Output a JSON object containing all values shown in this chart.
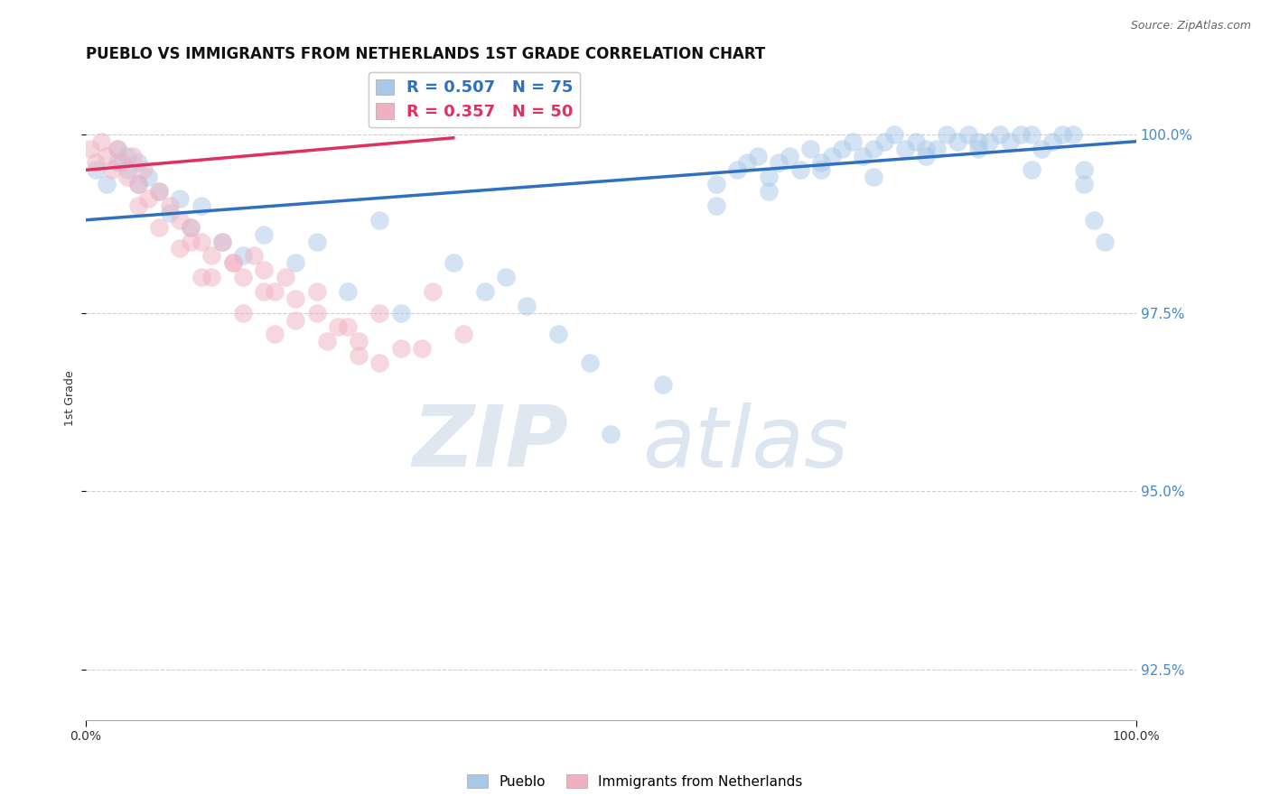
{
  "title": "PUEBLO VS IMMIGRANTS FROM NETHERLANDS 1ST GRADE CORRELATION CHART",
  "source_text": "Source: ZipAtlas.com",
  "ylabel": "1st Grade",
  "xmin": 0.0,
  "xmax": 100.0,
  "ymin": 91.8,
  "ymax": 100.8,
  "yticks": [
    92.5,
    95.0,
    97.5,
    100.0
  ],
  "xticks": [
    0.0,
    100.0
  ],
  "xticklabels": [
    "0.0%",
    "100.0%"
  ],
  "yticklabels": [
    "92.5%",
    "95.0%",
    "97.5%",
    "100.0%"
  ],
  "watermark_zip": "ZIP",
  "watermark_atlas": "atlas",
  "legend_blue_label": "R = 0.507   N = 75",
  "legend_pink_label": "R = 0.357   N = 50",
  "legend_blue_series": "Pueblo",
  "legend_pink_series": "Immigrants from Netherlands",
  "blue_color": "#a8c8e8",
  "pink_color": "#f0b0c0",
  "blue_line_color": "#3070c0",
  "pink_line_color": "#e03060",
  "background_color": "#ffffff",
  "grid_color": "#bbbbbb",
  "blue_points_x": [
    1,
    2,
    3,
    3,
    4,
    4,
    5,
    5,
    6,
    7,
    8,
    9,
    10,
    11,
    13,
    15,
    17,
    20,
    22,
    25,
    28,
    30,
    35,
    38,
    40,
    42,
    45,
    48,
    50,
    55,
    60,
    65,
    70,
    75,
    80,
    85,
    90,
    95,
    60,
    62,
    63,
    64,
    65,
    66,
    67,
    68,
    69,
    70,
    71,
    72,
    73,
    74,
    75,
    76,
    77,
    78,
    79,
    80,
    81,
    82,
    83,
    84,
    85,
    86,
    87,
    88,
    89,
    90,
    91,
    92,
    93,
    94,
    95,
    96,
    97
  ],
  "blue_points_y": [
    99.5,
    99.3,
    99.6,
    99.8,
    99.5,
    99.7,
    99.3,
    99.6,
    99.4,
    99.2,
    98.9,
    99.1,
    98.7,
    99.0,
    98.5,
    98.3,
    98.6,
    98.2,
    98.5,
    97.8,
    98.8,
    97.5,
    98.2,
    97.8,
    98.0,
    97.6,
    97.2,
    96.8,
    95.8,
    96.5,
    99.0,
    99.2,
    99.5,
    99.4,
    99.8,
    99.9,
    100.0,
    99.5,
    99.3,
    99.5,
    99.6,
    99.7,
    99.4,
    99.6,
    99.7,
    99.5,
    99.8,
    99.6,
    99.7,
    99.8,
    99.9,
    99.7,
    99.8,
    99.9,
    100.0,
    99.8,
    99.9,
    99.7,
    99.8,
    100.0,
    99.9,
    100.0,
    99.8,
    99.9,
    100.0,
    99.9,
    100.0,
    99.5,
    99.8,
    99.9,
    100.0,
    100.0,
    99.3,
    98.8,
    98.5
  ],
  "pink_points_x": [
    0.5,
    1,
    1.5,
    2,
    2.5,
    3,
    3.5,
    4,
    4.5,
    5,
    5.5,
    6,
    7,
    8,
    9,
    10,
    11,
    12,
    13,
    14,
    15,
    16,
    17,
    18,
    19,
    20,
    22,
    24,
    26,
    28,
    30,
    33,
    36,
    10,
    12,
    15,
    18,
    22,
    25,
    28,
    32,
    5,
    7,
    9,
    11,
    14,
    17,
    20,
    23,
    26
  ],
  "pink_points_y": [
    99.8,
    99.6,
    99.9,
    99.7,
    99.5,
    99.8,
    99.6,
    99.4,
    99.7,
    99.3,
    99.5,
    99.1,
    99.2,
    99.0,
    98.8,
    98.7,
    98.5,
    98.3,
    98.5,
    98.2,
    98.0,
    98.3,
    98.1,
    97.8,
    98.0,
    97.7,
    97.5,
    97.3,
    97.1,
    97.5,
    97.0,
    97.8,
    97.2,
    98.5,
    98.0,
    97.5,
    97.2,
    97.8,
    97.3,
    96.8,
    97.0,
    99.0,
    98.7,
    98.4,
    98.0,
    98.2,
    97.8,
    97.4,
    97.1,
    96.9
  ],
  "blue_line_x": [
    0.0,
    100.0
  ],
  "blue_line_y": [
    98.8,
    99.9
  ],
  "pink_line_x": [
    0.0,
    35.0
  ],
  "pink_line_y": [
    99.5,
    99.95
  ],
  "title_fontsize": 12,
  "axis_fontsize": 10,
  "ylabel_fontsize": 9
}
